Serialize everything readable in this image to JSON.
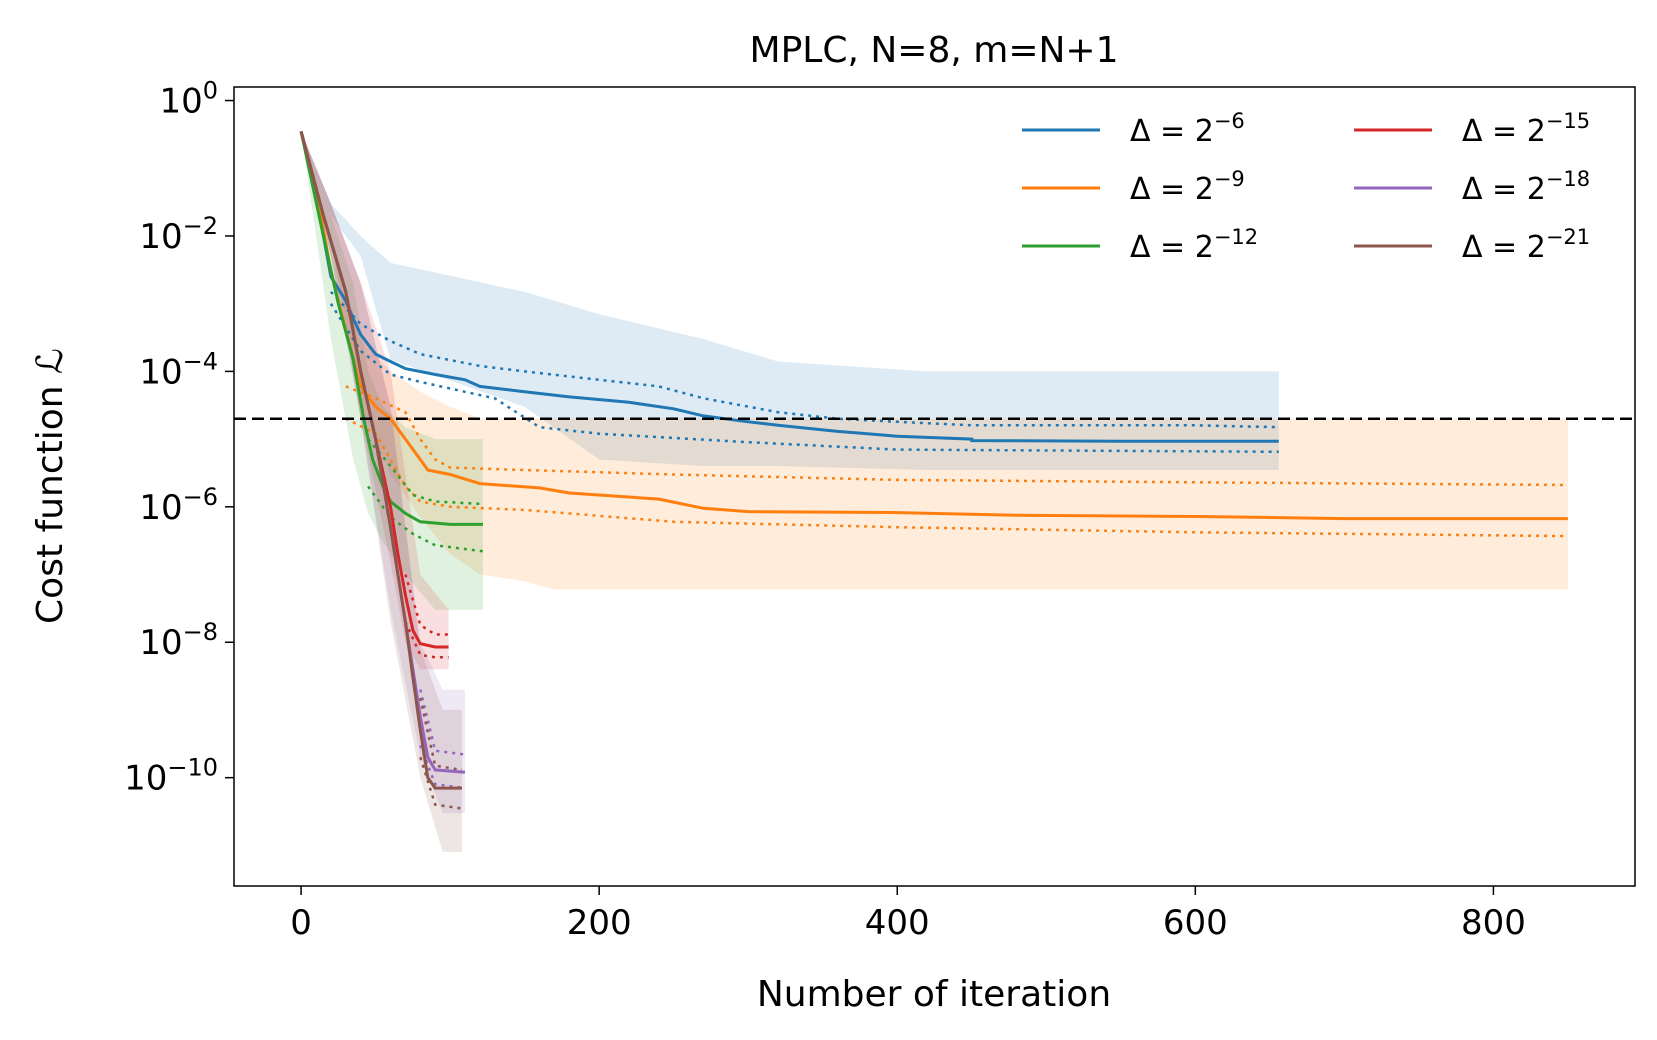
{
  "chart_data": {
    "type": "line",
    "title": "MPLC, N=8, m=N+1",
    "xlabel": "Number of iteration",
    "ylabel": "Cost function ℒ",
    "xlim": [
      -45,
      895
    ],
    "ylim_log10": [
      -11.6,
      0.2
    ],
    "yscale": "log",
    "x_ticks": [
      0,
      200,
      400,
      600,
      800
    ],
    "x_tick_labels": [
      "0",
      "200",
      "400",
      "600",
      "800"
    ],
    "y_ticks_log10": [
      0,
      -2,
      -4,
      -6,
      -8,
      -10
    ],
    "grid": false,
    "legend_position": "top-right",
    "legend_columns": 2,
    "threshold_line": {
      "y": 2e-05,
      "style": "dashed",
      "color": "#000000"
    },
    "series": [
      {
        "name": "Δ = 2^-6",
        "name_base": "Δ = 2",
        "name_exp": "−6",
        "color": "#1f77b4",
        "median": [
          [
            0,
            0.35
          ],
          [
            10,
            0.04
          ],
          [
            20,
            0.0025
          ],
          [
            30,
            0.0011
          ],
          [
            35,
            0.0006
          ],
          [
            40,
            0.00035
          ],
          [
            45,
            0.00025
          ],
          [
            50,
            0.00018
          ],
          [
            60,
            0.00014
          ],
          [
            70,
            0.00011
          ],
          [
            90,
            9e-05
          ],
          [
            110,
            7.5e-05
          ],
          [
            120,
            6e-05
          ],
          [
            150,
            5e-05
          ],
          [
            180,
            4.2e-05
          ],
          [
            220,
            3.5e-05
          ],
          [
            250,
            2.8e-05
          ],
          [
            270,
            2.2e-05
          ],
          [
            300,
            1.8e-05
          ],
          [
            320,
            1.6e-05
          ],
          [
            360,
            1.3e-05
          ],
          [
            380,
            1.2e-05
          ],
          [
            400,
            1.1e-05
          ],
          [
            450,
            1e-05
          ],
          [
            450,
            9.5e-06
          ],
          [
            550,
            9.3e-06
          ],
          [
            656,
            9.3e-06
          ]
        ],
        "upper": [
          [
            20,
            0.0015
          ],
          [
            40,
            0.0005
          ],
          [
            60,
            0.00028
          ],
          [
            80,
            0.00018
          ],
          [
            120,
            0.00012
          ],
          [
            150,
            0.0001
          ],
          [
            200,
            7.5e-05
          ],
          [
            240,
            6e-05
          ],
          [
            270,
            4e-05
          ],
          [
            320,
            2.5e-05
          ],
          [
            360,
            2e-05
          ],
          [
            400,
            1.8e-05
          ],
          [
            450,
            1.6e-05
          ],
          [
            600,
            1.6e-05
          ],
          [
            656,
            1.5e-05
          ]
        ],
        "lower": [
          [
            20,
            0.001
          ],
          [
            40,
            0.0002
          ],
          [
            60,
            9e-05
          ],
          [
            80,
            7e-05
          ],
          [
            110,
            5e-05
          ],
          [
            130,
            4e-05
          ],
          [
            160,
            1.5e-05
          ],
          [
            200,
            1.2e-05
          ],
          [
            300,
            9e-06
          ],
          [
            400,
            7e-06
          ],
          [
            656,
            6.5e-06
          ]
        ],
        "band": {
          "x": [
            0,
            20,
            40,
            60,
            150,
            200,
            270,
            320,
            420,
            656
          ],
          "hi": [
            0.35,
            0.03,
            0.01,
            0.004,
            0.0015,
            0.0007,
            0.0003,
            0.00014,
            0.0001,
            0.0001
          ],
          "lo": [
            0.35,
            0.02,
            0.005,
            0.00015,
            3e-05,
            5e-06,
            4e-06,
            4e-06,
            3.5e-06,
            3.5e-06
          ]
        }
      },
      {
        "name": "Δ = 2^-9",
        "name_base": "Δ = 2",
        "name_exp": "−9",
        "color": "#ff7f0e",
        "median": [
          [
            0,
            0.35
          ],
          [
            10,
            0.05
          ],
          [
            20,
            0.003
          ],
          [
            30,
            0.0004
          ],
          [
            40,
            6e-05
          ],
          [
            50,
            3e-05
          ],
          [
            60,
            2e-05
          ],
          [
            70,
            1e-05
          ],
          [
            80,
            5e-06
          ],
          [
            85,
            3.5e-06
          ],
          [
            100,
            3e-06
          ],
          [
            120,
            2.2e-06
          ],
          [
            160,
            1.9e-06
          ],
          [
            180,
            1.6e-06
          ],
          [
            240,
            1.3e-06
          ],
          [
            270,
            9.5e-07
          ],
          [
            300,
            8.5e-07
          ],
          [
            400,
            8.2e-07
          ],
          [
            480,
            7.5e-07
          ],
          [
            600,
            7.2e-07
          ],
          [
            640,
            7e-07
          ],
          [
            700,
            6.7e-07
          ],
          [
            850,
            6.7e-07
          ]
        ],
        "upper": [
          [
            30,
            6e-05
          ],
          [
            50,
            4e-05
          ],
          [
            70,
            2.5e-05
          ],
          [
            80,
            1e-05
          ],
          [
            90,
            5e-06
          ],
          [
            100,
            3.8e-06
          ],
          [
            150,
            3.5e-06
          ],
          [
            250,
            3e-06
          ],
          [
            400,
            2.5e-06
          ],
          [
            600,
            2.3e-06
          ],
          [
            850,
            2.1e-06
          ]
        ],
        "lower": [
          [
            30,
            2e-05
          ],
          [
            50,
            1.2e-05
          ],
          [
            60,
            5e-06
          ],
          [
            70,
            2e-06
          ],
          [
            80,
            1.2e-06
          ],
          [
            100,
            1e-06
          ],
          [
            150,
            9e-07
          ],
          [
            250,
            6e-07
          ],
          [
            400,
            5e-07
          ],
          [
            600,
            4.2e-07
          ],
          [
            850,
            3.7e-07
          ]
        ],
        "band": {
          "x": [
            0,
            20,
            40,
            60,
            80,
            100,
            120,
            150,
            170,
            850
          ],
          "hi": [
            0.35,
            0.01,
            0.0003,
            0.0001,
            5e-05,
            3e-05,
            2e-05,
            2e-05,
            2e-05,
            2e-05
          ],
          "lo": [
            0.35,
            0.005,
            3e-05,
            3e-06,
            7e-07,
            2e-07,
            1e-07,
            8e-08,
            6e-08,
            6e-08
          ]
        }
      },
      {
        "name": "Δ = 2^-12",
        "name_base": "Δ = 2",
        "name_exp": "−12",
        "color": "#2ca02c",
        "median": [
          [
            0,
            0.35
          ],
          [
            15,
            0.01
          ],
          [
            25,
            0.001
          ],
          [
            35,
            0.00015
          ],
          [
            42,
            2e-05
          ],
          [
            48,
            5e-06
          ],
          [
            55,
            2e-06
          ],
          [
            60,
            1.2e-06
          ],
          [
            70,
            8e-07
          ],
          [
            80,
            6e-07
          ],
          [
            100,
            5.5e-07
          ],
          [
            122,
            5.5e-07
          ]
        ],
        "upper": [
          [
            45,
            1e-05
          ],
          [
            60,
            4e-06
          ],
          [
            75,
            1.5e-06
          ],
          [
            90,
            1.2e-06
          ],
          [
            122,
            1.1e-06
          ]
        ],
        "lower": [
          [
            45,
            2e-06
          ],
          [
            60,
            7e-07
          ],
          [
            75,
            4e-07
          ],
          [
            90,
            2.7e-07
          ],
          [
            122,
            2.2e-07
          ]
        ],
        "band": {
          "x": [
            0,
            20,
            35,
            45,
            55,
            70,
            90,
            122
          ],
          "hi": [
            0.35,
            0.02,
            0.002,
            0.0001,
            3e-05,
            1.5e-05,
            1e-05,
            1e-05
          ],
          "lo": [
            0.35,
            0.0003,
            5e-06,
            8e-07,
            3e-07,
            1e-07,
            3e-08,
            3e-08
          ]
        }
      },
      {
        "name": "Δ = 2^-15",
        "name_base": "Δ = 2",
        "name_exp": "−15",
        "color": "#d62728",
        "median": [
          [
            0,
            0.35
          ],
          [
            15,
            0.02
          ],
          [
            30,
            0.0015
          ],
          [
            40,
            0.0001
          ],
          [
            50,
            1e-05
          ],
          [
            60,
            1e-06
          ],
          [
            65,
            2e-07
          ],
          [
            70,
            5e-08
          ],
          [
            75,
            1.5e-08
          ],
          [
            80,
            9.5e-09
          ],
          [
            90,
            8.5e-09
          ],
          [
            99,
            8.5e-09
          ]
        ],
        "upper": [
          [
            70,
            1e-07
          ],
          [
            80,
            1.8e-08
          ],
          [
            90,
            1.3e-08
          ],
          [
            99,
            1.3e-08
          ]
        ],
        "lower": [
          [
            70,
            2e-08
          ],
          [
            80,
            6.5e-09
          ],
          [
            90,
            6e-09
          ],
          [
            99,
            6e-09
          ]
        ],
        "band": {
          "x": [
            0,
            20,
            40,
            60,
            70,
            80,
            99
          ],
          "hi": [
            0.35,
            0.03,
            0.002,
            0.0001,
            3e-06,
            1e-07,
            3e-08
          ],
          "lo": [
            0.35,
            0.01,
            2e-05,
            1.5e-07,
            1e-08,
            4e-09,
            4e-09
          ]
        }
      },
      {
        "name": "Δ = 2^-18",
        "name_base": "Δ = 2",
        "name_exp": "−18",
        "color": "#9467bd",
        "median": [
          [
            0,
            0.35
          ],
          [
            15,
            0.02
          ],
          [
            30,
            0.0015
          ],
          [
            40,
            0.0001
          ],
          [
            50,
            1e-05
          ],
          [
            60,
            5e-07
          ],
          [
            70,
            2e-08
          ],
          [
            75,
            4e-09
          ],
          [
            80,
            8e-10
          ],
          [
            85,
            2e-10
          ],
          [
            90,
            1.3e-10
          ],
          [
            110,
            1.2e-10
          ]
        ],
        "upper": [
          [
            80,
            2e-09
          ],
          [
            90,
            2.5e-10
          ],
          [
            110,
            2.2e-10
          ]
        ],
        "lower": [
          [
            80,
            3e-10
          ],
          [
            90,
            8e-11
          ],
          [
            110,
            7e-11
          ]
        ],
        "band": {
          "x": [
            0,
            20,
            40,
            60,
            80,
            95,
            110
          ],
          "hi": [
            0.35,
            0.03,
            0.002,
            3e-05,
            1e-08,
            2e-09,
            2e-09
          ],
          "lo": [
            0.35,
            0.005,
            2e-05,
            3e-08,
            2e-10,
            3e-11,
            3e-11
          ]
        }
      },
      {
        "name": "Δ = 2^-21",
        "name_base": "Δ = 2",
        "name_exp": "−21",
        "color": "#8c564b",
        "median": [
          [
            0,
            0.35
          ],
          [
            15,
            0.02
          ],
          [
            30,
            0.0015
          ],
          [
            40,
            0.0001
          ],
          [
            50,
            1e-05
          ],
          [
            60,
            5e-07
          ],
          [
            70,
            2e-08
          ],
          [
            75,
            3e-09
          ],
          [
            80,
            5e-10
          ],
          [
            85,
            1e-10
          ],
          [
            90,
            7e-11
          ],
          [
            108,
            7e-11
          ]
        ],
        "upper": [
          [
            80,
            1.5e-09
          ],
          [
            90,
            1.5e-10
          ],
          [
            108,
            1.3e-10
          ]
        ],
        "lower": [
          [
            80,
            2e-10
          ],
          [
            90,
            4e-11
          ],
          [
            108,
            3.5e-11
          ]
        ],
        "band": {
          "x": [
            0,
            20,
            40,
            60,
            80,
            95,
            108
          ],
          "hi": [
            0.35,
            0.03,
            0.002,
            3e-05,
            8e-09,
            1e-09,
            1e-09
          ],
          "lo": [
            0.35,
            0.005,
            2e-05,
            2e-08,
            1e-10,
            8e-12,
            8e-12
          ]
        }
      }
    ]
  }
}
